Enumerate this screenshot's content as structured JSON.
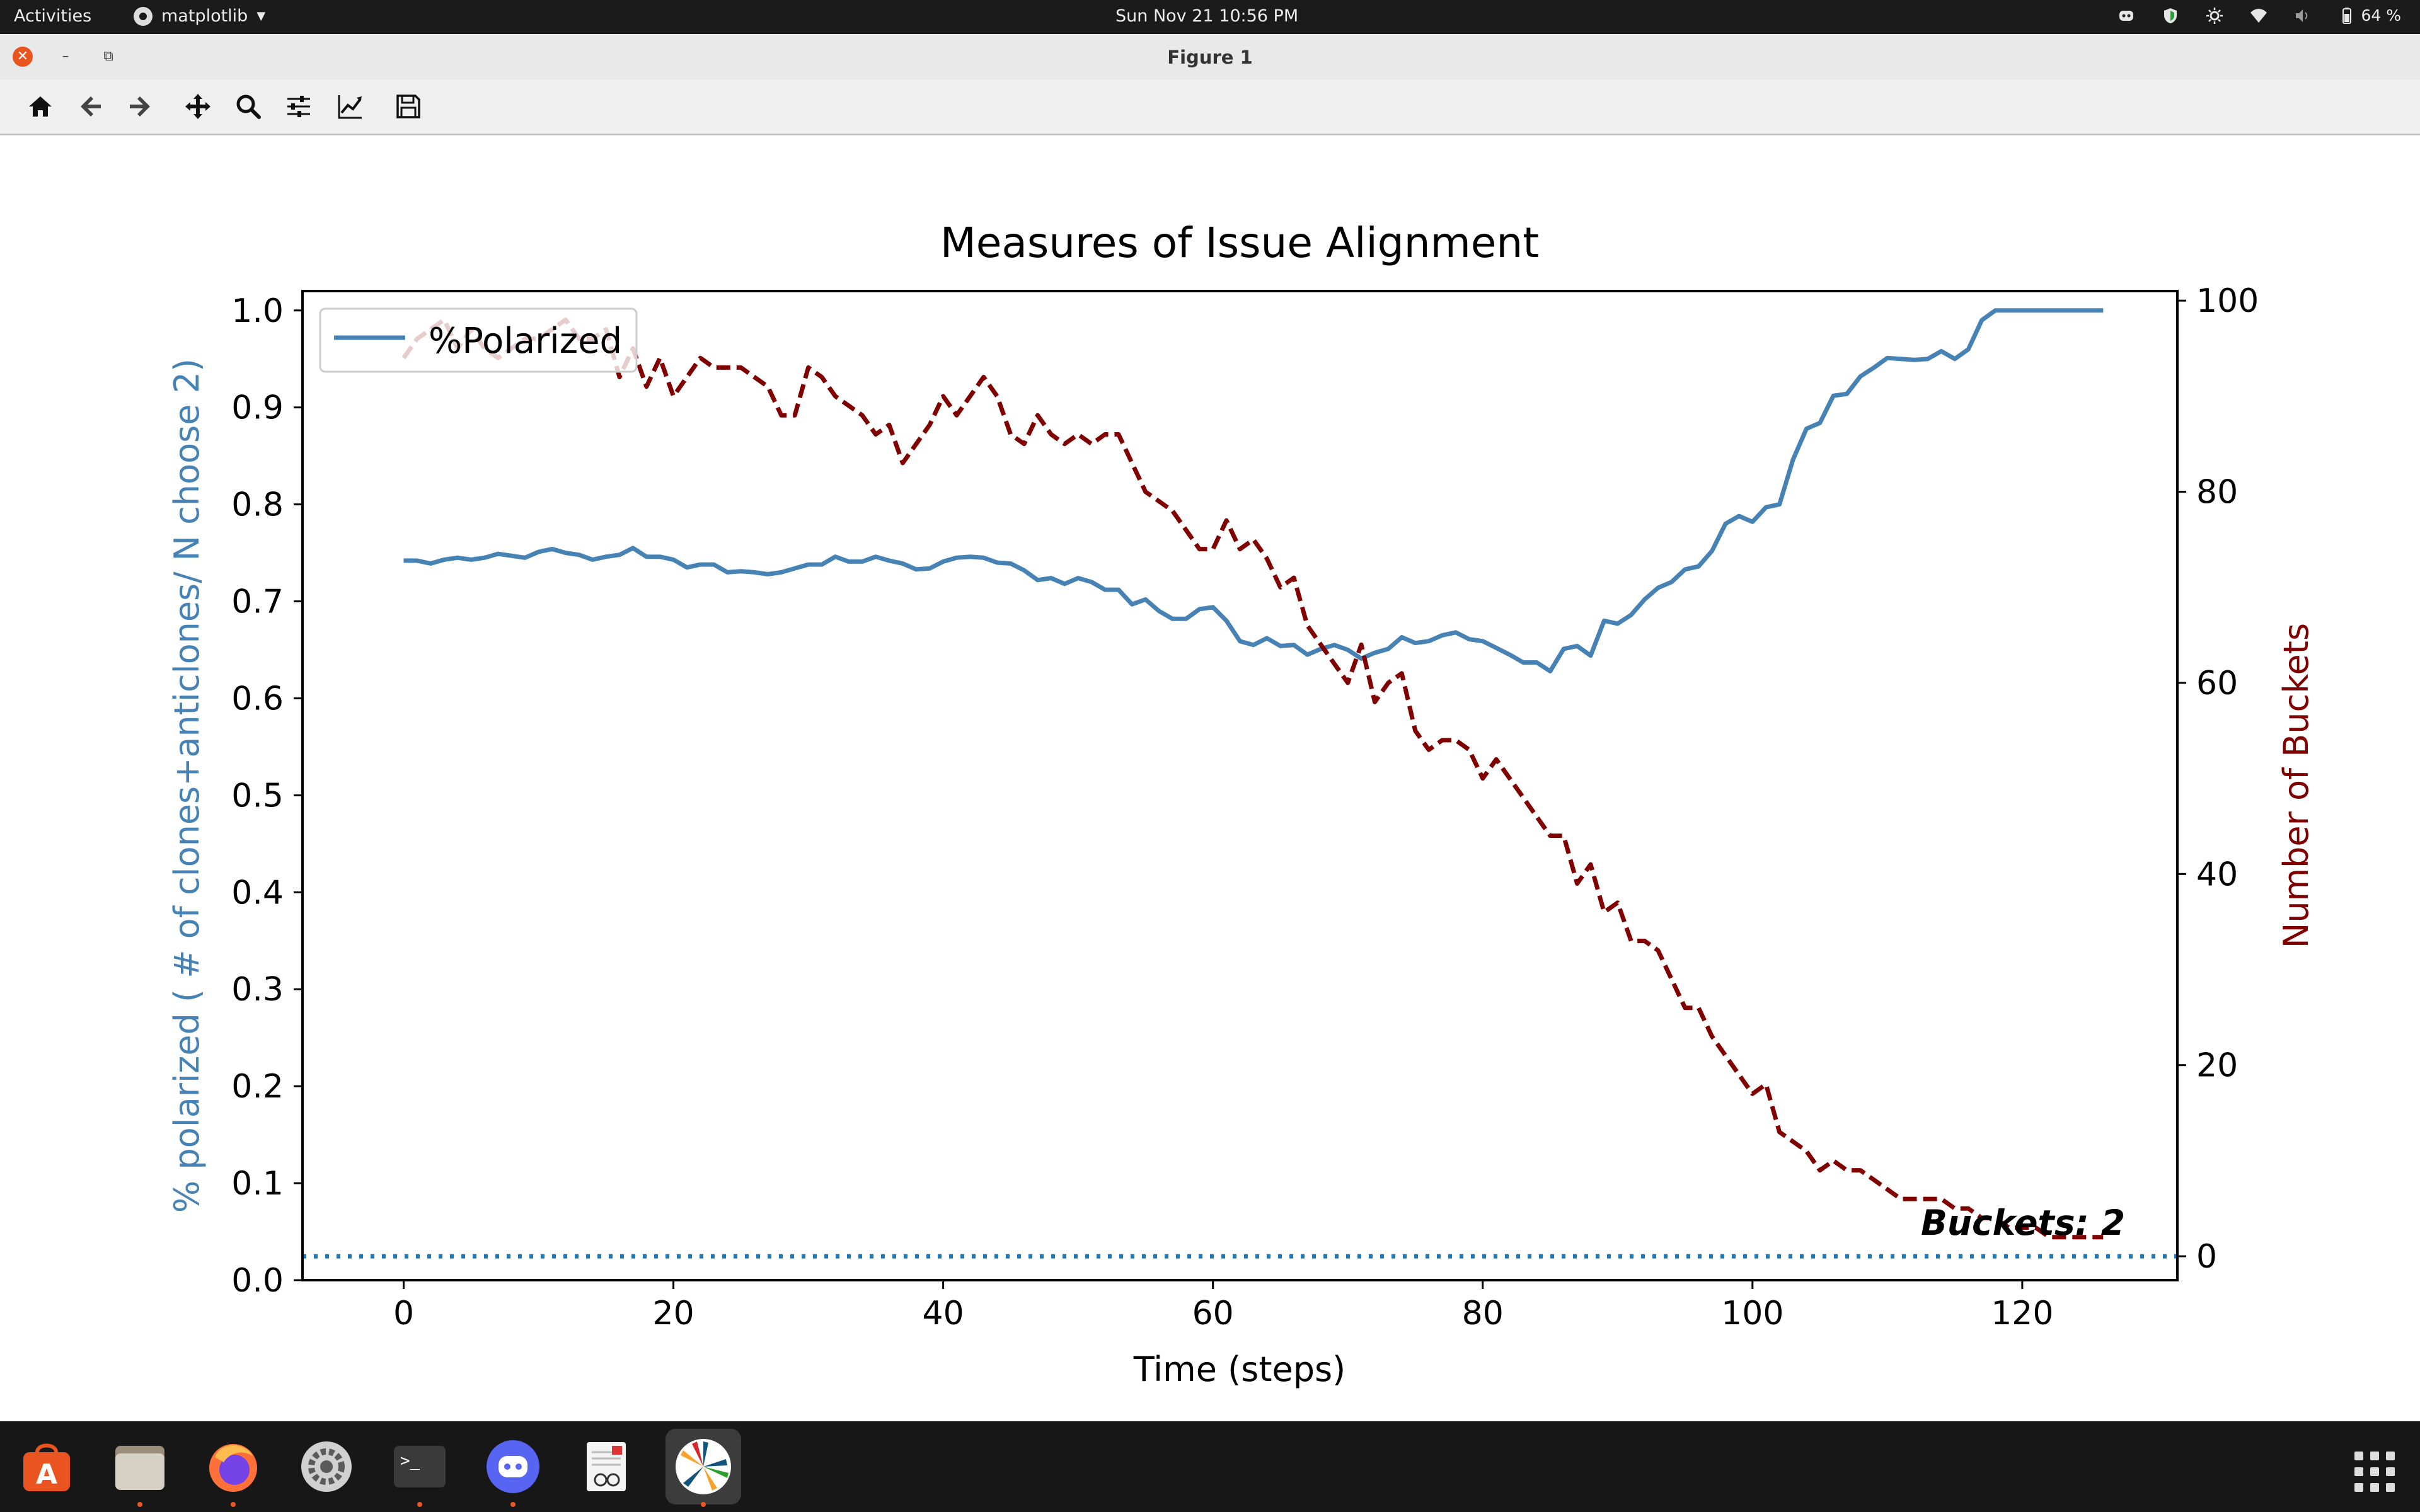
{
  "topbar": {
    "activities": "Activities",
    "app_name": "matplotlib",
    "clock": "Sun Nov 21  10:56 PM",
    "battery": "64 %"
  },
  "window": {
    "title": "Figure 1"
  },
  "toolbar": {
    "icons": [
      "home-icon",
      "back-arrow-icon",
      "forward-arrow-icon",
      "pan-icon",
      "zoom-icon",
      "configure-subplots-icon",
      "edit-axis-icon",
      "save-icon"
    ]
  },
  "colors": {
    "polarized": "#4682b4",
    "buckets": "#800000",
    "dotted": "#1f77b4",
    "accent": "#e95420"
  },
  "chart_data": {
    "type": "line",
    "title": "Measures of Issue Alignment",
    "xlabel": "Time (steps)",
    "ylabel": "% polarized ( # of clones+anticlones/ N choose 2)",
    "ylabel_right": "Number of Buckets",
    "xlim": [
      -7.5,
      131.5
    ],
    "ylim": [
      0.0,
      1.02
    ],
    "ylim_right": [
      -2.5,
      101
    ],
    "xticks": [
      "0",
      "20",
      "40",
      "60",
      "80",
      "100",
      "120"
    ],
    "yticks": [
      "0.0",
      "0.1",
      "0.2",
      "0.3",
      "0.4",
      "0.5",
      "0.6",
      "0.7",
      "0.8",
      "0.9",
      "1.0"
    ],
    "yticks_right": [
      "0",
      "20",
      "40",
      "60",
      "80",
      "100"
    ],
    "legend": {
      "location": "upper-left",
      "entries": [
        "%Polarized"
      ]
    },
    "annotation": "Buckets: 2",
    "series": [
      {
        "name": "%Polarized",
        "axis": "left",
        "style": "solid",
        "x": [
          0,
          1,
          2,
          3,
          4,
          5,
          6,
          7,
          8,
          9,
          10,
          11,
          12,
          13,
          14,
          15,
          16,
          17,
          18,
          19,
          20,
          21,
          22,
          23,
          24,
          25,
          26,
          27,
          28,
          29,
          30,
          31,
          32,
          33,
          34,
          35,
          36,
          37,
          38,
          39,
          40,
          41,
          42,
          43,
          44,
          45,
          46,
          47,
          48,
          49,
          50,
          51,
          52,
          53,
          54,
          55,
          56,
          57,
          58,
          59,
          60,
          61,
          62,
          63,
          64,
          65,
          66,
          67,
          68,
          69,
          70,
          71,
          72,
          73,
          74,
          75,
          76,
          77,
          78,
          79,
          80,
          81,
          82,
          83,
          84,
          85,
          86,
          87,
          88,
          89,
          90,
          91,
          92,
          93,
          94,
          95,
          96,
          97,
          98,
          99,
          100,
          101,
          102,
          103,
          104,
          105,
          106,
          107,
          108,
          109,
          110,
          111,
          112,
          113,
          114,
          115,
          116,
          117,
          118,
          119,
          120,
          121,
          122,
          123,
          124,
          125,
          126
        ],
        "values": [
          0.742,
          0.742,
          0.739,
          0.743,
          0.745,
          0.743,
          0.745,
          0.749,
          0.747,
          0.745,
          0.751,
          0.754,
          0.75,
          0.748,
          0.743,
          0.746,
          0.748,
          0.755,
          0.746,
          0.746,
          0.743,
          0.735,
          0.738,
          0.738,
          0.73,
          0.731,
          0.73,
          0.728,
          0.73,
          0.734,
          0.738,
          0.738,
          0.746,
          0.741,
          0.741,
          0.746,
          0.742,
          0.739,
          0.733,
          0.734,
          0.741,
          0.745,
          0.746,
          0.745,
          0.74,
          0.739,
          0.732,
          0.722,
          0.724,
          0.718,
          0.724,
          0.72,
          0.712,
          0.712,
          0.697,
          0.702,
          0.69,
          0.682,
          0.682,
          0.692,
          0.694,
          0.68,
          0.659,
          0.655,
          0.662,
          0.654,
          0.655,
          0.645,
          0.651,
          0.655,
          0.65,
          0.641,
          0.647,
          0.651,
          0.663,
          0.657,
          0.659,
          0.665,
          0.668,
          0.661,
          0.659,
          0.652,
          0.645,
          0.637,
          0.637,
          0.628,
          0.651,
          0.654,
          0.644,
          0.68,
          0.677,
          0.686,
          0.702,
          0.714,
          0.72,
          0.733,
          0.736,
          0.752,
          0.78,
          0.788,
          0.782,
          0.797,
          0.8,
          0.846,
          0.878,
          0.884,
          0.912,
          0.914,
          0.932,
          0.941,
          0.951,
          0.95,
          0.949,
          0.95,
          0.958,
          0.95,
          0.96,
          0.99,
          1.0,
          1.0,
          1.0,
          1.0,
          1.0,
          1.0,
          1.0,
          1.0,
          1.0
        ]
      },
      {
        "name": "Number of Buckets",
        "axis": "right",
        "style": "dashed",
        "x": [
          0,
          1,
          2,
          3,
          4,
          5,
          6,
          7,
          8,
          9,
          10,
          11,
          12,
          13,
          14,
          15,
          16,
          17,
          18,
          19,
          20,
          21,
          22,
          23,
          24,
          25,
          26,
          27,
          28,
          29,
          30,
          31,
          32,
          33,
          34,
          35,
          36,
          37,
          38,
          39,
          40,
          41,
          42,
          43,
          44,
          45,
          46,
          47,
          48,
          49,
          50,
          51,
          52,
          53,
          54,
          55,
          56,
          57,
          58,
          59,
          60,
          61,
          62,
          63,
          64,
          65,
          66,
          67,
          68,
          69,
          70,
          71,
          72,
          73,
          74,
          75,
          76,
          77,
          78,
          79,
          80,
          81,
          82,
          83,
          84,
          85,
          86,
          87,
          88,
          89,
          90,
          91,
          92,
          93,
          94,
          95,
          96,
          97,
          98,
          99,
          100,
          101,
          102,
          103,
          104,
          105,
          106,
          107,
          108,
          109,
          110,
          111,
          112,
          113,
          114,
          115,
          116,
          117,
          118,
          119,
          120,
          121,
          122,
          123,
          124,
          125,
          126
        ],
        "values": [
          94,
          96,
          97,
          98,
          95,
          97,
          95,
          94,
          95,
          96,
          96,
          97,
          98,
          96,
          96,
          97,
          92,
          95,
          91,
          94,
          90,
          92,
          94,
          93,
          93,
          93,
          92,
          91,
          88,
          88,
          93,
          92,
          90,
          89,
          88,
          86,
          87,
          83,
          85,
          87,
          90,
          88,
          90,
          92,
          90,
          86,
          85,
          88,
          86,
          85,
          86,
          85,
          86,
          86,
          83,
          80,
          79,
          78,
          76,
          74,
          74,
          77,
          74,
          75,
          73,
          70,
          71,
          66,
          64,
          62,
          60,
          64,
          58,
          60,
          61,
          55,
          53,
          54,
          54,
          53,
          50,
          52,
          50,
          48,
          46,
          44,
          44,
          39,
          41,
          36,
          37,
          33,
          33,
          32,
          29,
          26,
          26,
          23,
          21,
          19,
          17,
          18,
          13,
          12,
          11,
          9,
          10,
          9,
          9,
          8,
          7,
          6,
          6,
          6,
          6,
          5,
          5,
          4,
          4,
          3,
          3,
          3,
          2,
          2,
          2,
          2,
          2
        ]
      },
      {
        "name": "",
        "axis": "right",
        "style": "dotted",
        "x": [
          -7.5,
          131.5
        ],
        "values": [
          0,
          0
        ]
      }
    ]
  }
}
